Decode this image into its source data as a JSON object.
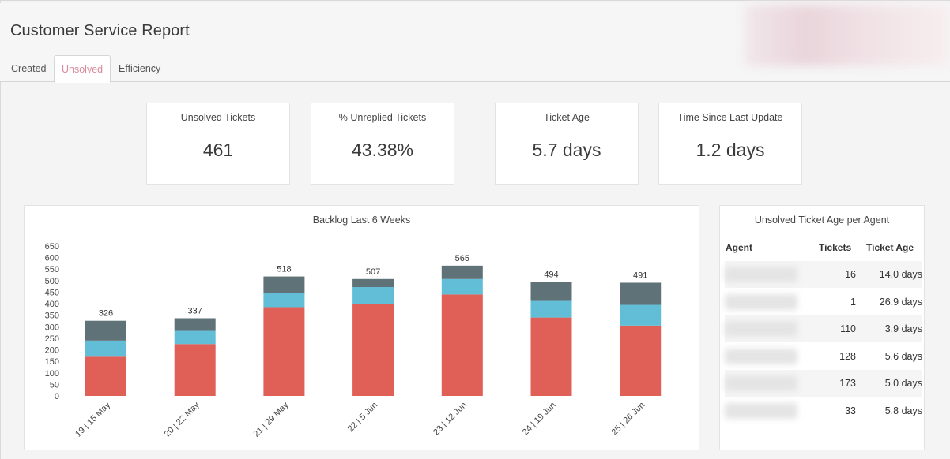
{
  "app": {
    "title": "Customer Service Report"
  },
  "tabs": [
    {
      "label": "Created",
      "active": false
    },
    {
      "label": "Unsolved",
      "active": true
    },
    {
      "label": "Efficiency",
      "active": false
    }
  ],
  "kpis": [
    {
      "label": "Unsolved Tickets",
      "value": "461"
    },
    {
      "label": "% Unreplied Tickets",
      "value": "43.38%"
    },
    {
      "label": "Ticket Age",
      "value": "5.7 days"
    },
    {
      "label": "Time Since Last Update",
      "value": "1.2 days"
    }
  ],
  "colors": {
    "series_red": "#e05f57",
    "series_blue": "#62bdd6",
    "series_gray": "#5f7277",
    "active_tab": "#d98a9c"
  },
  "chart_data": {
    "type": "bar",
    "stacked": true,
    "title": "Backlog Last 6 Weeks",
    "xlabel": "",
    "ylabel": "",
    "ylim": [
      0,
      650
    ],
    "yticks": [
      0,
      50,
      100,
      150,
      200,
      250,
      300,
      350,
      400,
      450,
      500,
      550,
      600,
      650
    ],
    "grid": false,
    "legend": "none",
    "categories": [
      "19 | 15 May",
      "20 | 22 May",
      "21 | 29 May",
      "22 | 5 Jun",
      "23 | 12 Jun",
      "24 | 19 Jun",
      "25 | 26 Jun"
    ],
    "series": [
      {
        "color": "#e05f57",
        "values": [
          170,
          225,
          385,
          400,
          440,
          340,
          305
        ]
      },
      {
        "color": "#62bdd6",
        "values": [
          70,
          57,
          60,
          72,
          67,
          72,
          90
        ]
      },
      {
        "color": "#5f7277",
        "values": [
          86,
          55,
          73,
          35,
          58,
          82,
          96
        ]
      }
    ],
    "totals": [
      326,
      337,
      518,
      507,
      565,
      494,
      491
    ]
  },
  "agent_table": {
    "title": "Unsolved Ticket Age per Agent",
    "headers": {
      "agent": "Agent",
      "tickets": "Tickets",
      "age": "Ticket Age"
    },
    "rows": [
      {
        "tickets": "16",
        "age": "14.0 days"
      },
      {
        "tickets": "1",
        "age": "26.9 days"
      },
      {
        "tickets": "110",
        "age": "3.9 days"
      },
      {
        "tickets": "128",
        "age": "5.6 days"
      },
      {
        "tickets": "173",
        "age": "5.0 days"
      },
      {
        "tickets": "33",
        "age": "5.8 days"
      }
    ]
  }
}
